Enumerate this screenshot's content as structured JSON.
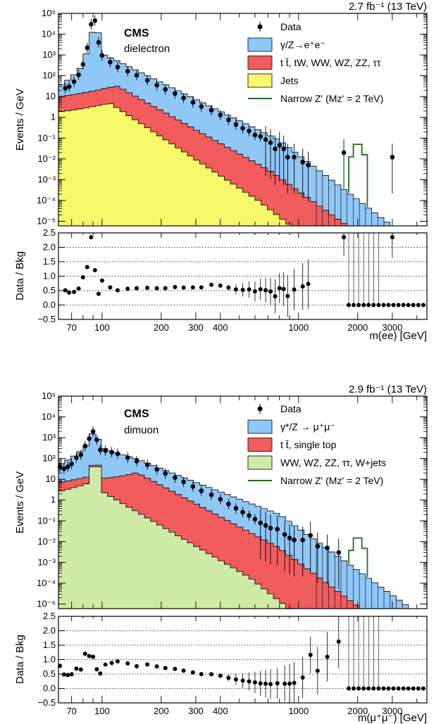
{
  "colors": {
    "dy": "#8fc7f7",
    "tt": "#f25c5c",
    "jets": "#f7f76a",
    "diboson": "#cdeaa6",
    "zprime": "#1f6e1f",
    "data": "#000000",
    "frame": "#000000"
  },
  "chart_data": [
    {
      "type": "histogram",
      "panel": "dielectron",
      "lumi_label": "2.7 fb⁻¹ (13 TeV)",
      "experiment": "CMS",
      "channel": "dielectron",
      "xlabel": "m(ee) [GeV]",
      "ylabel": "Events / GeV",
      "ratio_ylabel": "Data / Bkg",
      "xlim": [
        60,
        4500
      ],
      "ylim": [
        6e-06,
        100000
      ],
      "x_scale": "log",
      "y_scale": "log",
      "ratio_ylim": [
        -0.5,
        2.5
      ],
      "x_tick_labels": [
        "70",
        "100",
        "200",
        "300",
        "400",
        "1000",
        "2000",
        "3000"
      ],
      "y_tick_labels": [
        "10⁻⁵",
        "10⁻⁴",
        "10⁻³",
        "10⁻²",
        "10⁻¹",
        "1",
        "10",
        "10²",
        "10³",
        "10⁴",
        "10⁵"
      ],
      "ratio_tick_labels": [
        "−0.5",
        "0.0",
        "0.5",
        "1.0",
        "1.5",
        "2.0",
        "2.5"
      ],
      "legend_position": "top-right",
      "legend": [
        {
          "key": "data",
          "label": "Data"
        },
        {
          "key": "dy",
          "label": "γ/Z→e⁺e⁻"
        },
        {
          "key": "tt",
          "label": "t t̄, tW, WW, WZ, ZZ, ττ"
        },
        {
          "key": "jets",
          "label": "Jets"
        },
        {
          "key": "zprime",
          "label": "Narrow Z' (Mᴢ' = 2 TeV)"
        }
      ],
      "signal_mass": 2000,
      "nbins": 60,
      "series": [
        {
          "name": "γ/Z→e⁺e⁻",
          "shape": "dy_ee",
          "peak_value": 55000,
          "value_at_3000": 0.0005
        },
        {
          "name": "t t̄, tW, WW, WZ, ZZ, ττ",
          "shape": "tt",
          "value_at_120": 28,
          "value_at_1000": 0.001
        },
        {
          "name": "Jets",
          "shape": "jets",
          "value_at_110": 4.8,
          "value_at_1000": 2e-05
        },
        {
          "name": "Narrow Z' (Mᴢ' = 2 TeV)",
          "shape": "zprime",
          "peak_value": 0.05
        }
      ],
      "data_points": [
        [
          65,
          25
        ],
        [
          68,
          30
        ],
        [
          72,
          52
        ],
        [
          76,
          110
        ],
        [
          80,
          350
        ],
        [
          84,
          2200
        ],
        [
          88,
          30000
        ],
        [
          92,
          45000
        ],
        [
          96,
          4000
        ],
        [
          100,
          950
        ],
        [
          110,
          450
        ],
        [
          120,
          260
        ],
        [
          135,
          165
        ],
        [
          150,
          105
        ],
        [
          170,
          60
        ],
        [
          190,
          35
        ],
        [
          210,
          22
        ],
        [
          235,
          14
        ],
        [
          260,
          8.5
        ],
        [
          290,
          5.2
        ],
        [
          320,
          3.3
        ],
        [
          360,
          2.2
        ],
        [
          400,
          1.3
        ],
        [
          440,
          0.75
        ],
        [
          480,
          0.45
        ],
        [
          520,
          0.3
        ],
        [
          560,
          0.22
        ],
        [
          600,
          0.14
        ],
        [
          640,
          0.12
        ],
        [
          680,
          0.085
        ],
        [
          720,
          0.06
        ],
        [
          760,
          0.03
        ],
        [
          800,
          0.045
        ],
        [
          840,
          0.03
        ],
        [
          880,
          0.012
        ],
        [
          950,
          0.012
        ],
        [
          1050,
          0.007
        ],
        [
          1120,
          0.005
        ],
        [
          1700,
          0.02
        ],
        [
          3000,
          0.012
        ]
      ]
    },
    {
      "type": "histogram",
      "panel": "dimuon",
      "lumi_label": "2.9 fb⁻¹ (13 TeV)",
      "experiment": "CMS",
      "channel": "dimuon",
      "xlabel": "m(μ⁺μ⁻) [GeV]",
      "ylabel": "Events / GeV",
      "ratio_ylabel": "Data / Bkg",
      "xlim": [
        60,
        4500
      ],
      "ylim": [
        6e-06,
        100000
      ],
      "x_scale": "log",
      "y_scale": "log",
      "ratio_ylim": [
        -0.5,
        2.5
      ],
      "x_tick_labels": [
        "70",
        "100",
        "200",
        "300",
        "400",
        "1000",
        "2000",
        "3000"
      ],
      "y_tick_labels": [
        "10⁻⁵",
        "10⁻⁴",
        "10⁻³",
        "10⁻²",
        "10⁻¹",
        "1",
        "10",
        "10²",
        "10³",
        "10⁴",
        "10⁵"
      ],
      "ratio_tick_labels": [
        "−0.5",
        "0.0",
        "0.5",
        "1.0",
        "1.5",
        "2.0",
        "2.5"
      ],
      "legend_position": "top-right",
      "legend": [
        {
          "key": "data",
          "label": "Data"
        },
        {
          "key": "dy",
          "label": "γ*/Z → μ⁺μ⁻"
        },
        {
          "key": "tt",
          "label": "t t̄, single top"
        },
        {
          "key": "diboson",
          "label": "WW, WZ, ZZ, ττ, W+jets"
        },
        {
          "key": "zprime",
          "label": "Narrow Z' (Mᴢ' = 2 TeV)"
        }
      ],
      "signal_mass": 2000,
      "nbins": 60,
      "series": [
        {
          "name": "γ*/Z → μ⁺μ⁻",
          "shape": "dy_mm",
          "peak_value": 2200,
          "value_at_3000": 5e-05
        },
        {
          "name": "t t̄, single top",
          "shape": "tt_mm",
          "value_at_150": 20,
          "value_at_1000": 0.001
        },
        {
          "name": "WW, WZ, ZZ, ττ, W+jets",
          "shape": "diboson",
          "value_at_90": 40,
          "value_at_1000": 0.0002
        },
        {
          "name": "Narrow Z' (Mᴢ' = 2 TeV)",
          "shape": "zprime",
          "peak_value": 0.015
        }
      ],
      "data_points": [
        [
          61,
          40
        ],
        [
          64,
          32
        ],
        [
          67,
          40
        ],
        [
          70,
          55
        ],
        [
          74,
          110
        ],
        [
          78,
          150
        ],
        [
          82,
          400
        ],
        [
          86,
          900
        ],
        [
          90,
          2000
        ],
        [
          94,
          800
        ],
        [
          98,
          260
        ],
        [
          104,
          240
        ],
        [
          112,
          200
        ],
        [
          120,
          170
        ],
        [
          135,
          110
        ],
        [
          150,
          75
        ],
        [
          170,
          50
        ],
        [
          190,
          30
        ],
        [
          210,
          19
        ],
        [
          235,
          12
        ],
        [
          260,
          7.5
        ],
        [
          290,
          4.5
        ],
        [
          320,
          2.8
        ],
        [
          360,
          1.8
        ],
        [
          400,
          1.1
        ],
        [
          440,
          0.65
        ],
        [
          480,
          0.4
        ],
        [
          520,
          0.26
        ],
        [
          560,
          0.18
        ],
        [
          600,
          0.12
        ],
        [
          640,
          0.08
        ],
        [
          680,
          0.06
        ],
        [
          720,
          0.045
        ],
        [
          780,
          0.04
        ],
        [
          850,
          0.022
        ],
        [
          900,
          0.015
        ],
        [
          950,
          0.012
        ],
        [
          1050,
          0.012
        ],
        [
          1150,
          0.02
        ],
        [
          1250,
          0.006
        ],
        [
          1400,
          0.005
        ],
        [
          1600,
          0.003
        ]
      ]
    }
  ]
}
